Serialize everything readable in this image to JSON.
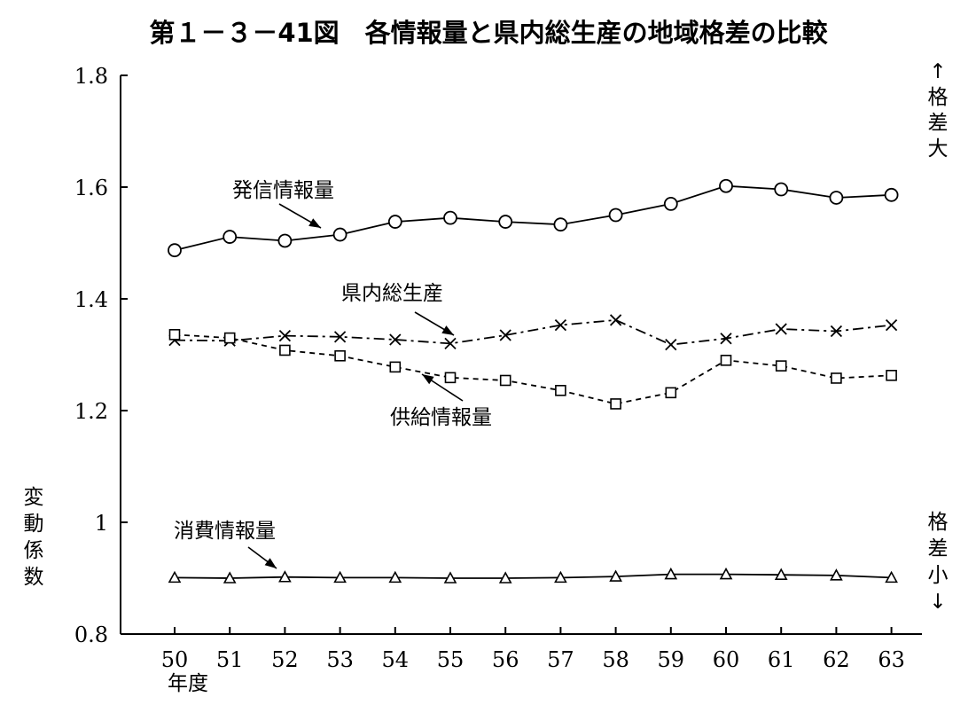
{
  "chart_data": {
    "type": "line",
    "title": "第１－３－41図　各情報量と県内総生産の地域格差の比較",
    "ylabel": "変動係数",
    "xlabel": "年度",
    "x": [
      "50",
      "51",
      "52",
      "53",
      "54",
      "55",
      "56",
      "57",
      "58",
      "59",
      "60",
      "61",
      "62",
      "63"
    ],
    "ylim": [
      0.8,
      1.8
    ],
    "yticks": [
      "0.8",
      "1",
      "1.2",
      "1.4",
      "1.6",
      "1.8"
    ],
    "yticks_values": [
      0.8,
      1.0,
      1.2,
      1.4,
      1.6,
      1.8
    ],
    "grid": false,
    "right_labels": {
      "top": "↑格差大",
      "bottom": "格差小↓"
    },
    "series": [
      {
        "name": "発信情報量",
        "marker": "circle",
        "line": "solid",
        "values": [
          1.487,
          1.511,
          1.504,
          1.515,
          1.538,
          1.545,
          1.538,
          1.533,
          1.55,
          1.57,
          1.602,
          1.596,
          1.581,
          1.586
        ]
      },
      {
        "name": "県内総生産",
        "marker": "x",
        "line": "dashdot",
        "values": [
          1.326,
          1.325,
          1.334,
          1.332,
          1.327,
          1.32,
          1.335,
          1.353,
          1.362,
          1.318,
          1.329,
          1.346,
          1.342,
          1.353
        ]
      },
      {
        "name": "供給情報量",
        "marker": "square",
        "line": "dashed",
        "values": [
          1.336,
          1.33,
          1.308,
          1.298,
          1.278,
          1.259,
          1.254,
          1.236,
          1.212,
          1.232,
          1.29,
          1.28,
          1.258,
          1.263
        ]
      },
      {
        "name": "消費情報量",
        "marker": "triangle",
        "line": "solid",
        "values": [
          0.901,
          0.9,
          0.902,
          0.901,
          0.901,
          0.9,
          0.9,
          0.901,
          0.903,
          0.907,
          0.907,
          0.906,
          0.905,
          0.901
        ]
      }
    ]
  }
}
